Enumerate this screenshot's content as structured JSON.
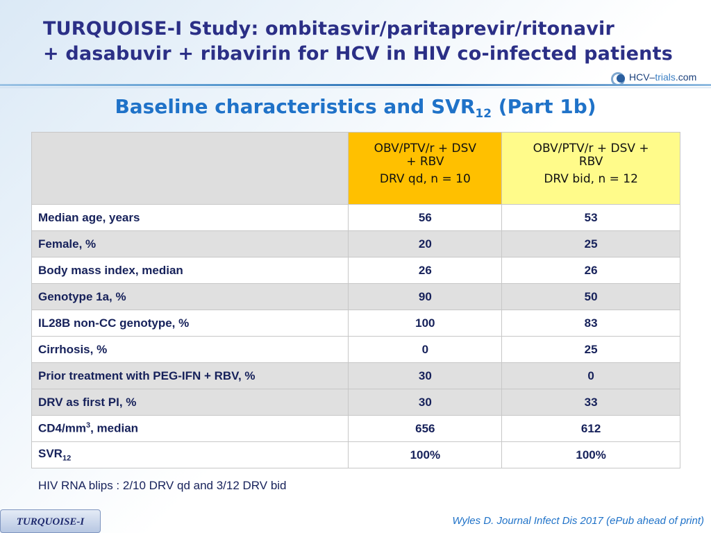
{
  "header": {
    "title_line1": "TURQUOISE-I Study: ombitasvir/paritaprevir/ritonavir",
    "title_line2": "+ dasabuvir + ribavirin for HCV in HIV co-infected patients",
    "logo_prefix": "HCV–",
    "logo_accent": "trials",
    "logo_suffix": ".com"
  },
  "subtitle": {
    "text": "Baseline characteristics and SVR",
    "sub": "12",
    "suffix": " (Part 1b)"
  },
  "table": {
    "columns": [
      {
        "regimen_line1": "OBV/PTV/r + DSV",
        "regimen_line2": "+ RBV",
        "dose": "DRV qd, n = 10",
        "color": "#ffc000"
      },
      {
        "regimen_line1": "OBV/PTV/r + DSV +",
        "regimen_line2": "RBV",
        "dose": "DRV bid, n = 12",
        "color": "#fffb8a"
      }
    ],
    "rows": [
      {
        "label": "Median age, years",
        "v1": "56",
        "v2": "53"
      },
      {
        "label": "Female, %",
        "v1": "20",
        "v2": "25"
      },
      {
        "label": "Body mass index, median",
        "v1": "26",
        "v2": "26"
      },
      {
        "label": "Genotype 1a, %",
        "v1": "90",
        "v2": "50"
      },
      {
        "label": "IL28B non-CC genotype, %",
        "v1": "100",
        "v2": "83"
      },
      {
        "label": "Cirrhosis, %",
        "v1": "0",
        "v2": "25"
      },
      {
        "label": "Prior treatment with PEG-IFN + RBV, %",
        "v1": "30",
        "v2": "0"
      },
      {
        "label": "DRV as first PI, %",
        "v1": "30",
        "v2": "33"
      },
      {
        "label_pre": "CD4/mm",
        "label_sup": "3",
        "label_post": ", median",
        "v1": "656",
        "v2": "612"
      },
      {
        "label_pre": "SVR",
        "label_sub": "12",
        "v1": "100%",
        "v2": "100%"
      }
    ]
  },
  "note": "HIV RNA blips : 2/10 DRV qd and 3/12 DRV bid",
  "footer": {
    "tab_label": "TURQUOISE-I",
    "citation": "Wyles D. Journal Infect Dis 2017 (ePub ahead of print)"
  }
}
